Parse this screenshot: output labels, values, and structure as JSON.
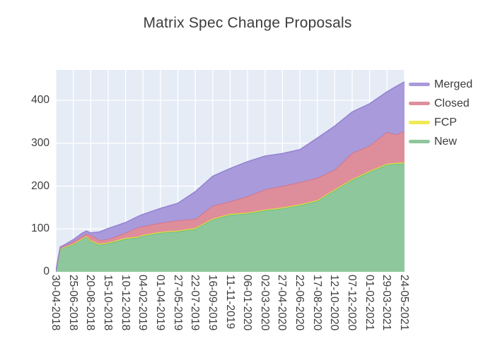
{
  "chart_data": {
    "type": "area",
    "stacked": true,
    "title": "Matrix Spec Change Proposals",
    "xlabel": "",
    "ylabel": "",
    "background": "#e5ecf6",
    "grid": true,
    "grid_color": "#ffffff",
    "text_color": "#3c3c3c",
    "legend_position": "right",
    "legend_order": [
      "Merged",
      "Closed",
      "FCP",
      "New"
    ],
    "ylim": [
      0,
      471
    ],
    "y_ticks": [
      0,
      100,
      200,
      300,
      400
    ],
    "x_tick_labels": [
      "30-04-2018",
      "25-06-2018",
      "20-08-2018",
      "15-10-2018",
      "10-12-2018",
      "04-02-2019",
      "01-04-2019",
      "27-05-2019",
      "22-07-2019",
      "16-09-2019",
      "11-11-2019",
      "06-01-2020",
      "02-03-2020",
      "27-04-2020",
      "22-06-2020",
      "17-08-2020",
      "12-10-2020",
      "07-12-2020",
      "01-02-2021",
      "29-03-2021",
      "24-05-2021"
    ],
    "x": [
      "30-04-2018",
      "07-05-2018",
      "14-05-2018",
      "28-05-2018",
      "25-06-2018",
      "23-07-2018",
      "06-08-2018",
      "20-08-2018",
      "17-09-2018",
      "15-10-2018",
      "10-12-2018",
      "21-01-2019",
      "04-02-2019",
      "01-04-2019",
      "27-05-2019",
      "22-07-2019",
      "16-09-2019",
      "11-11-2019",
      "06-01-2020",
      "02-03-2020",
      "27-04-2020",
      "22-06-2020",
      "17-08-2020",
      "12-10-2020",
      "07-12-2020",
      "01-02-2021",
      "29-03-2021",
      "26-04-2021",
      "24-05-2021"
    ],
    "series": [
      {
        "name": "New",
        "color": "#8dc79b",
        "line_color": "#5fb97e",
        "values": [
          1,
          28,
          53,
          57,
          64,
          76,
          82,
          71,
          63,
          66,
          77,
          80,
          84,
          91,
          94,
          100,
          122,
          133,
          136,
          143,
          148,
          155,
          165,
          190,
          214,
          233,
          250,
          252,
          253
        ]
      },
      {
        "name": "FCP",
        "color": "#f0ea55",
        "line_color": "#e8e12f",
        "values": [
          0,
          0,
          1,
          1,
          1,
          1,
          1,
          2,
          2,
          2,
          2,
          2,
          2,
          2,
          2,
          2,
          2,
          2,
          2,
          2,
          2,
          2,
          2,
          2,
          2,
          2,
          2,
          2,
          2
        ]
      },
      {
        "name": "Closed",
        "color": "#de8e9b",
        "line_color": "#d66f80",
        "values": [
          0,
          1,
          2,
          2,
          5,
          6,
          5,
          13,
          9,
          8,
          12,
          22,
          20,
          21,
          24,
          21,
          30,
          29,
          38,
          47,
          50,
          52,
          52,
          46,
          61,
          59,
          74,
          66,
          73
        ]
      },
      {
        "name": "Merged",
        "color": "#a89adb",
        "line_color": "#9784d2",
        "values": [
          0,
          1,
          2,
          3,
          5,
          7,
          7,
          5,
          19,
          25,
          24,
          26,
          28,
          34,
          40,
          64,
          69,
          77,
          81,
          78,
          76,
          76,
          93,
          102,
          96,
          98,
          94,
          112,
          115
        ]
      }
    ]
  }
}
